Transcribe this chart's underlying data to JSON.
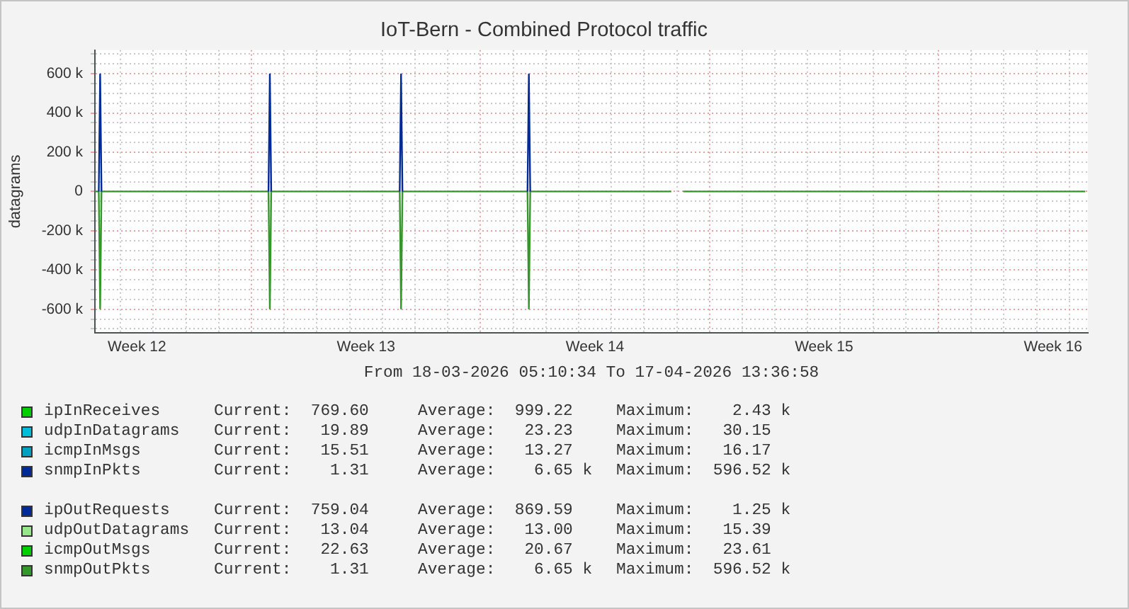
{
  "chart_data": {
    "type": "line",
    "title": "IoT-Bern - Combined Protocol traffic",
    "ylabel": "datagrams",
    "xlabel": "From 18-03-2026 05:10:34 To 17-04-2026 13:36:58",
    "x": [
      "2026-03-18T05:10",
      "2026-03-18T08:00",
      "2026-03-18T09:00",
      "2026-03-18T10:00",
      "2026-03-23T12:30",
      "2026-03-23T13:30",
      "2026-03-23T14:30",
      "2026-03-27T12:45",
      "2026-03-27T13:45",
      "2026-03-27T14:45",
      "2026-03-31T10:30",
      "2026-03-31T11:30",
      "2026-03-31T12:30",
      "2026-04-04T20:00",
      "2026-04-05T00:00",
      "2026-04-05T04:45",
      "2026-04-17T11:40"
    ],
    "series": [
      {
        "name": "ipInReceives",
        "color": "#00cf00",
        "values": [
          null,
          null,
          null,
          null,
          null,
          null,
          null,
          null,
          null,
          null,
          null,
          null,
          null,
          null,
          null,
          null,
          null
        ]
      },
      {
        "name": "udpInDatagrams",
        "color": "#00bed9",
        "values": [
          null,
          null,
          null,
          null,
          null,
          null,
          null,
          null,
          null,
          null,
          null,
          null,
          null,
          null,
          null,
          null,
          null
        ]
      },
      {
        "name": "icmpInMsgs",
        "color": "#00a0c1",
        "values": [
          null,
          null,
          null,
          null,
          null,
          null,
          null,
          null,
          null,
          null,
          null,
          null,
          null,
          null,
          null,
          null,
          null
        ]
      },
      {
        "name": "snmpInPkts",
        "color": "#002a97",
        "x": [
          "2026-03-18T08:00",
          "2026-03-18T09:00",
          "2026-03-18T10:00",
          "2026-03-20T00:00",
          "2026-03-23T12:30",
          "2026-03-23T13:30",
          "2026-03-23T14:30",
          "2026-03-25T00:00",
          "2026-03-27T12:45",
          "2026-03-27T13:45",
          "2026-03-27T14:45",
          "2026-03-29T00:00",
          "2026-03-31T10:30",
          "2026-03-31T11:30",
          "2026-03-31T12:30"
        ],
        "values": [
          0,
          596520,
          0,
          null,
          0,
          596520,
          0,
          null,
          0,
          596520,
          0,
          null,
          0,
          596520,
          0
        ]
      },
      {
        "name": "ipOutRequests",
        "color": "#002a97",
        "values": [
          null,
          null,
          null,
          null,
          null,
          null,
          null,
          null,
          null,
          null,
          null,
          null,
          null,
          null,
          null,
          null,
          null
        ]
      },
      {
        "name": "udpOutDatagrams",
        "color": "#96e78a",
        "values": [
          null,
          null,
          null,
          null,
          null,
          null,
          null,
          null,
          null,
          null,
          null,
          null,
          null,
          null,
          null,
          null,
          null
        ]
      },
      {
        "name": "icmpOutMsgs",
        "color": "#00cf00",
        "values": [
          null,
          null,
          null,
          null,
          null,
          null,
          null,
          null,
          null,
          null,
          null,
          null,
          null,
          null,
          null,
          null,
          null
        ]
      },
      {
        "name": "snmpOutPkts",
        "color": "#35962b",
        "values": [
          0,
          0,
          -596520,
          0,
          0,
          -596520,
          0,
          0,
          -596520,
          0,
          0,
          -596520,
          0,
          0,
          null,
          0,
          0
        ]
      }
    ],
    "xlim": [
      "2026-03-18T05:10",
      "2026-04-17T13:36"
    ],
    "xticks": [
      {
        "value": "2026-03-19",
        "label": null
      },
      {
        "value": "2026-03-19T12:00",
        "label": "Week 12"
      },
      {
        "value": "2026-03-20",
        "label": null
      },
      {
        "value": "2026-03-21",
        "label": null
      },
      {
        "value": "2026-03-22",
        "label": null
      },
      {
        "value": "2026-03-23",
        "label": null
      },
      {
        "value": "2026-03-24",
        "label": null
      },
      {
        "value": "2026-03-25",
        "label": null
      },
      {
        "value": "2026-03-26",
        "label": null
      },
      {
        "value": "2026-03-26T12:00",
        "label": "Week 13"
      },
      {
        "value": "2026-03-27",
        "label": null
      },
      {
        "value": "2026-03-28",
        "label": null
      },
      {
        "value": "2026-03-29",
        "label": null
      },
      {
        "value": "2026-03-30",
        "label": null
      },
      {
        "value": "2026-03-31",
        "label": null
      },
      {
        "value": "2026-04-01",
        "label": null
      },
      {
        "value": "2026-04-02",
        "label": null
      },
      {
        "value": "2026-04-02T12:00",
        "label": "Week 14"
      },
      {
        "value": "2026-04-03",
        "label": null
      },
      {
        "value": "2026-04-04",
        "label": null
      },
      {
        "value": "2026-04-05",
        "label": null
      },
      {
        "value": "2026-04-06",
        "label": null
      },
      {
        "value": "2026-04-07",
        "label": null
      },
      {
        "value": "2026-04-08",
        "label": null
      },
      {
        "value": "2026-04-09",
        "label": null
      },
      {
        "value": "2026-04-09T12:00",
        "label": "Week 15"
      },
      {
        "value": "2026-04-10",
        "label": null
      },
      {
        "value": "2026-04-11",
        "label": null
      },
      {
        "value": "2026-04-12",
        "label": null
      },
      {
        "value": "2026-04-13",
        "label": null
      },
      {
        "value": "2026-04-14",
        "label": null
      },
      {
        "value": "2026-04-15",
        "label": null
      },
      {
        "value": "2026-04-16",
        "label": null
      },
      {
        "value": "2026-04-16T12:00",
        "label": "Week 16"
      },
      {
        "value": "2026-04-17",
        "label": null
      }
    ],
    "ylim": [
      -720000,
      720000
    ],
    "yticks": [
      {
        "value": -700000,
        "label": null
      },
      {
        "value": -650000,
        "label": null
      },
      {
        "value": -600000,
        "label": "-600 k"
      },
      {
        "value": -550000,
        "label": null
      },
      {
        "value": -500000,
        "label": null
      },
      {
        "value": -450000,
        "label": null
      },
      {
        "value": -400000,
        "label": "-400 k"
      },
      {
        "value": -350000,
        "label": null
      },
      {
        "value": -300000,
        "label": null
      },
      {
        "value": -250000,
        "label": null
      },
      {
        "value": -200000,
        "label": "-200 k"
      },
      {
        "value": -150000,
        "label": null
      },
      {
        "value": -100000,
        "label": null
      },
      {
        "value": -50000,
        "label": null
      },
      0,
      {
        "value": 50000,
        "label": null
      },
      {
        "value": 100000,
        "label": null
      },
      {
        "value": 150000,
        "label": null
      },
      {
        "value": 200000,
        "label": "200 k"
      },
      {
        "value": 250000,
        "label": null
      },
      {
        "value": 300000,
        "label": null
      },
      {
        "value": 350000,
        "label": null
      },
      {
        "value": 400000,
        "label": "400 k"
      },
      {
        "value": 450000,
        "label": null
      },
      {
        "value": 500000,
        "label": null
      },
      {
        "value": 550000,
        "label": null
      },
      {
        "value": 600000,
        "label": "600 k"
      },
      {
        "value": 650000,
        "label": null
      },
      {
        "value": 700000,
        "label": null
      }
    ],
    "grid": true,
    "legend": "bottom",
    "annotations": [
      "Current:  769.60",
      "Average:  999.22",
      "Maximum:    2.43 k",
      "Current:   19.89",
      "Average:   23.23",
      "Maximum:   30.15",
      "Current:   15.51",
      "Average:   13.27",
      "Maximum:   16.17",
      "Current:    1.31",
      "Average:    6.65 k",
      "Maximum:  596.52 k",
      "Current:  759.04",
      "Average:  869.59",
      "Maximum:    1.25 k",
      "Current:   13.04",
      "Average:   13.00",
      "Maximum:   15.39",
      "Current:   22.63",
      "Average:   20.67",
      "Maximum:   23.61",
      "Current:    1.31",
      "Average:    6.65 k",
      "Maximum:  596.52 k"
    ]
  }
}
